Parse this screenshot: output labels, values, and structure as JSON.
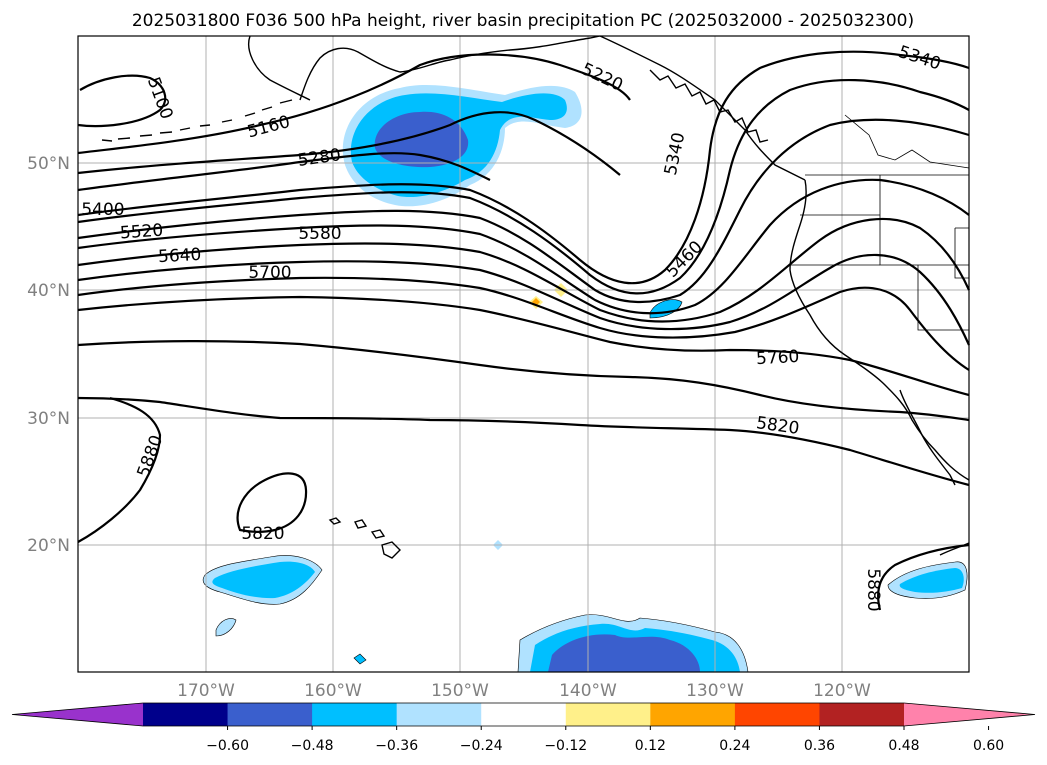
{
  "title": "2025031800 F036 500 hPa height, river basin precipitation PC (2025032000 - 2025032300)",
  "map": {
    "lat_labels": [
      "50°N",
      "40°N",
      "30°N",
      "20°N"
    ],
    "lon_labels": [
      "170°W",
      "160°W",
      "150°W",
      "140°W",
      "130°W",
      "120°W"
    ],
    "contour_labels": [
      "5100",
      "5160",
      "5220",
      "5280",
      "5340",
      "5340",
      "5400",
      "5460",
      "5520",
      "5580",
      "5640",
      "5700",
      "5760",
      "5820",
      "5820",
      "5880",
      "5880"
    ],
    "gridlines": true,
    "field_name": "500 hPa height",
    "shading_name": "river basin precipitation PC"
  },
  "colorbar": {
    "ticks": [
      "−0.60",
      "−0.48",
      "−0.36",
      "−0.24",
      "−0.12",
      "0.12",
      "0.24",
      "0.36",
      "0.48",
      "0.60"
    ],
    "colors": [
      "#9932cc",
      "#00008b",
      "#3a5fcd",
      "#00bfff",
      "#b0e2ff",
      "#ffffff",
      "#fff08a",
      "#ffa500",
      "#ff4500",
      "#b22222",
      "#ff82ab"
    ],
    "extend": "both"
  }
}
